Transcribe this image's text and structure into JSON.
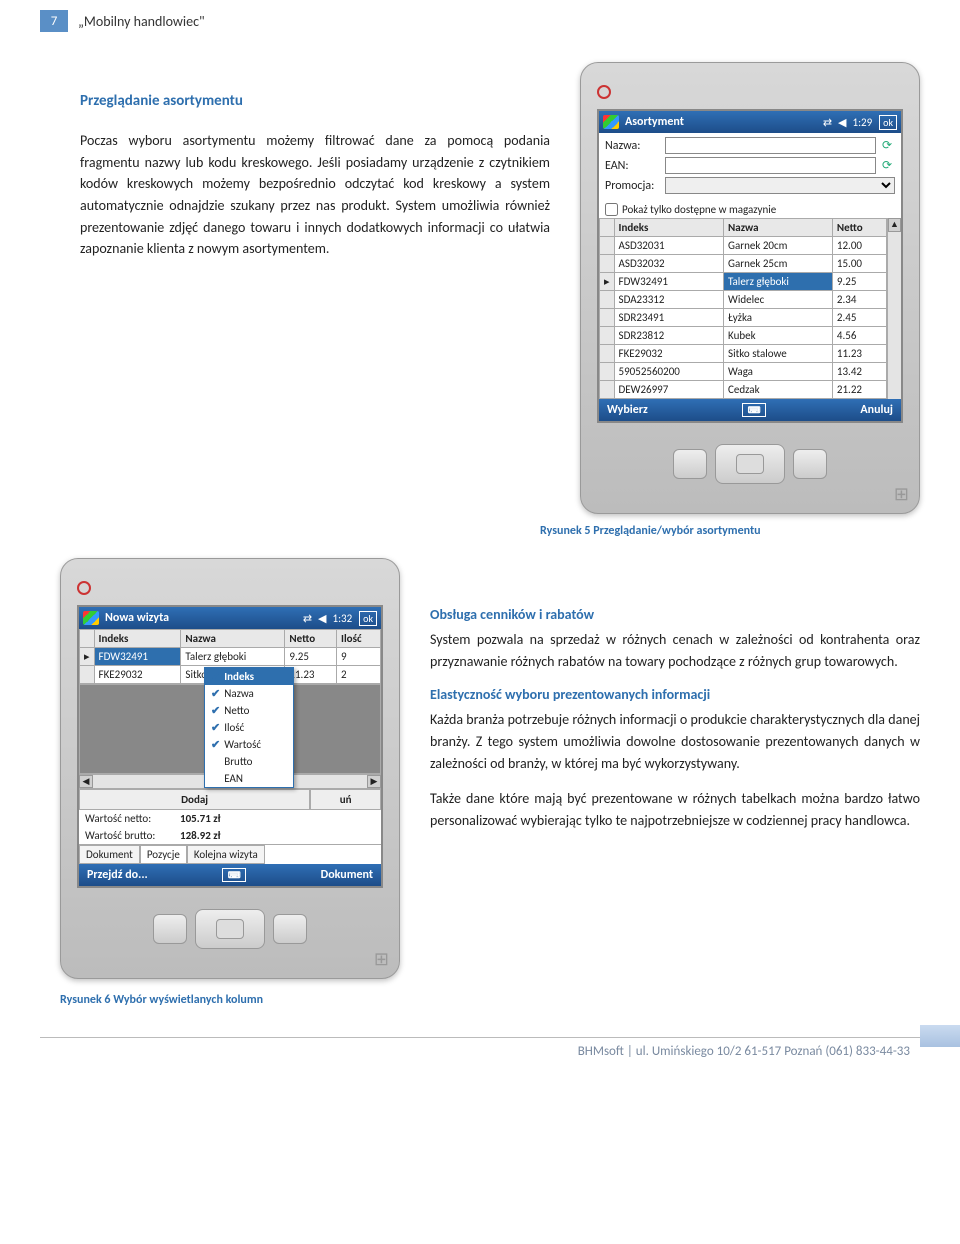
{
  "header": {
    "page_number": "7",
    "doc_title": "„Mobilny handlowiec\""
  },
  "section1": {
    "heading": "Przeglądanie asortymentu",
    "para1": "Poczas wyboru asortymentu możemy filtrować dane za pomocą podania fragmentu nazwy lub kodu kreskowego. Jeśli posiadamy urządzenie z czytnikiem kodów kreskowych możemy bezpośrednio odczytać kod kreskowy a system automatycznie odnajdzie szukany przez nas produkt. System umożliwia również prezentowanie zdjęć danego towaru i innych dodatkowych informacji co ułatwia zapoznanie klienta z nowym asortymentem."
  },
  "device1": {
    "title": "Asortyment",
    "time": "1:29",
    "ok": "ok",
    "labels": {
      "nazwa": "Nazwa:",
      "ean": "EAN:",
      "promocja": "Promocja:",
      "checkbox": "Pokaż tylko dostępne w magazynie"
    },
    "columns": [
      "Indeks",
      "Nazwa",
      "Netto"
    ],
    "rows": [
      {
        "idx": "ASD32031",
        "name": "Garnek 20cm",
        "net": "12.00",
        "sel": false
      },
      {
        "idx": "ASD32032",
        "name": "Garnek 25cm",
        "net": "15.00",
        "sel": false
      },
      {
        "idx": "FDW32491",
        "name": "Talerz głęboki",
        "net": "9.25",
        "sel": true
      },
      {
        "idx": "SDA23312",
        "name": "Widelec",
        "net": "2.34",
        "sel": false
      },
      {
        "idx": "SDR23491",
        "name": "Łyżka",
        "net": "2.45",
        "sel": false
      },
      {
        "idx": "SDR23812",
        "name": "Kubek",
        "net": "4.56",
        "sel": false
      },
      {
        "idx": "FKE29032",
        "name": "Sitko stalowe",
        "net": "11.23",
        "sel": false
      },
      {
        "idx": "59052560200",
        "name": "Waga",
        "net": "13.42",
        "sel": false
      },
      {
        "idx": "DEW26997",
        "name": "Cedzak",
        "net": "21.22",
        "sel": false
      }
    ],
    "bottom": {
      "left": "Wybierz",
      "right": "Anuluj"
    }
  },
  "caption1": "Rysunek 5 Przeglądanie/wybór asortymentu",
  "device2": {
    "title": "Nowa wizyta",
    "time": "1:32",
    "ok": "ok",
    "columns": [
      "Indeks",
      "Nazwa",
      "Netto",
      "Ilość"
    ],
    "rows": [
      {
        "idx": "FDW32491",
        "name": "Talerz głęboki",
        "net": "9.25",
        "qty": "9",
        "sel": true
      },
      {
        "idx": "FKE29032",
        "name": "Sitko stalowe",
        "net": "11.23",
        "qty": "2",
        "sel": false
      }
    ],
    "menu": [
      {
        "label": "Indeks",
        "checked": true,
        "hdr": true
      },
      {
        "label": "Nazwa",
        "checked": true
      },
      {
        "label": "Netto",
        "checked": true
      },
      {
        "label": "Ilość",
        "checked": true
      },
      {
        "label": "Wartość",
        "checked": true
      },
      {
        "label": "Brutto",
        "checked": false
      },
      {
        "label": "EAN",
        "checked": false
      }
    ],
    "buttons": {
      "add": "Dodaj",
      "del": "uń"
    },
    "values": {
      "netto_label": "Wartość netto:",
      "netto": "105.71 zł",
      "brutto_label": "Wartość brutto:",
      "brutto": "128.92 zł"
    },
    "tabs": [
      "Dokument",
      "Pozycje",
      "Kolejna wizyta"
    ],
    "bottom": {
      "left": "Przejdź do...",
      "right": "Dokument"
    }
  },
  "caption2": "Rysunek 6 Wybór wyświetlanych kolumn",
  "section2": {
    "h1": "Obsługa cenników i rabatów",
    "p1": "System pozwala na sprzedaż w różnych cenach w zależności od kontrahenta oraz przyznawanie różnych rabatów na towary pochodzące z różnych grup towarowych.",
    "h2": "Elastyczność wyboru prezentowanych informacji",
    "p2": "Każda branża potrzebuje różnych informacji o produkcie charakterystycznych dla danej branży. Z tego system umożliwia dowolne dostosowanie prezentowanych danych w zależności od branży, w której ma być wykorzystywany.",
    "p3": "Także dane które mają być prezentowane w różnych tabelkach można bardzo łatwo personalizować wybierając tylko te najpotrzebniejsze w codziennej pracy handlowca."
  },
  "footer": "BHMsoft | ul. Umińskiego 10/2  61-517 Poznań (061) 833-44-33"
}
